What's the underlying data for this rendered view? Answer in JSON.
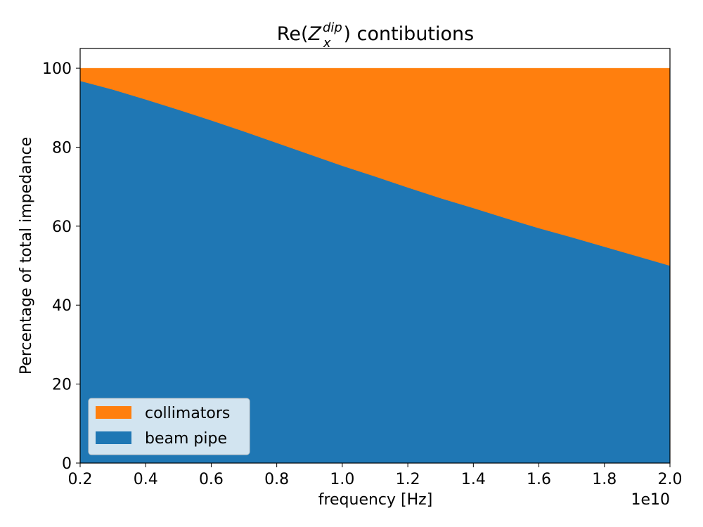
{
  "chart_data": {
    "type": "area",
    "stacked": true,
    "title": {
      "prefix": "Re(",
      "symbol": "Z",
      "superscript": "dip",
      "subscript": "x",
      "suffix": ") contibutions"
    },
    "xlabel": "frequency [Hz]",
    "ylabel": "Percentage of total impedance",
    "x_offset_label": "1e10",
    "xlim": [
      0.2,
      2.0
    ],
    "ylim": [
      0,
      105
    ],
    "xticks": [
      0.2,
      0.4,
      0.6,
      0.8,
      1.0,
      1.2,
      1.4,
      1.6,
      1.8,
      2.0
    ],
    "xtick_labels": [
      "0.2",
      "0.4",
      "0.6",
      "0.8",
      "1.0",
      "1.2",
      "1.4",
      "1.6",
      "1.8",
      "2.0"
    ],
    "yticks": [
      0,
      20,
      40,
      60,
      80,
      100
    ],
    "ytick_labels": [
      "0",
      "20",
      "40",
      "60",
      "80",
      "100"
    ],
    "grid": false,
    "legend_position": "lower-left",
    "x": [
      0.2,
      0.3,
      0.4,
      0.5,
      0.6,
      0.7,
      0.8,
      0.9,
      1.0,
      1.1,
      1.2,
      1.3,
      1.4,
      1.5,
      1.6,
      1.7,
      1.8,
      1.9,
      2.0
    ],
    "series": [
      {
        "name": "beam pipe",
        "color": "#1f77b4",
        "values": [
          96.8,
          94.6,
          92.1,
          89.5,
          86.8,
          84.0,
          81.1,
          78.2,
          75.3,
          72.6,
          69.8,
          67.1,
          64.6,
          62.0,
          59.5,
          57.2,
          54.8,
          52.4,
          50.0
        ]
      },
      {
        "name": "collimators",
        "color": "#ff7f0e",
        "values": [
          3.2,
          5.4,
          7.9,
          10.5,
          13.2,
          16.0,
          18.9,
          21.8,
          24.7,
          27.4,
          30.2,
          32.9,
          35.4,
          38.0,
          40.5,
          42.8,
          45.2,
          47.6,
          50.0
        ]
      }
    ],
    "legend": [
      "collimators",
      "beam pipe"
    ]
  }
}
